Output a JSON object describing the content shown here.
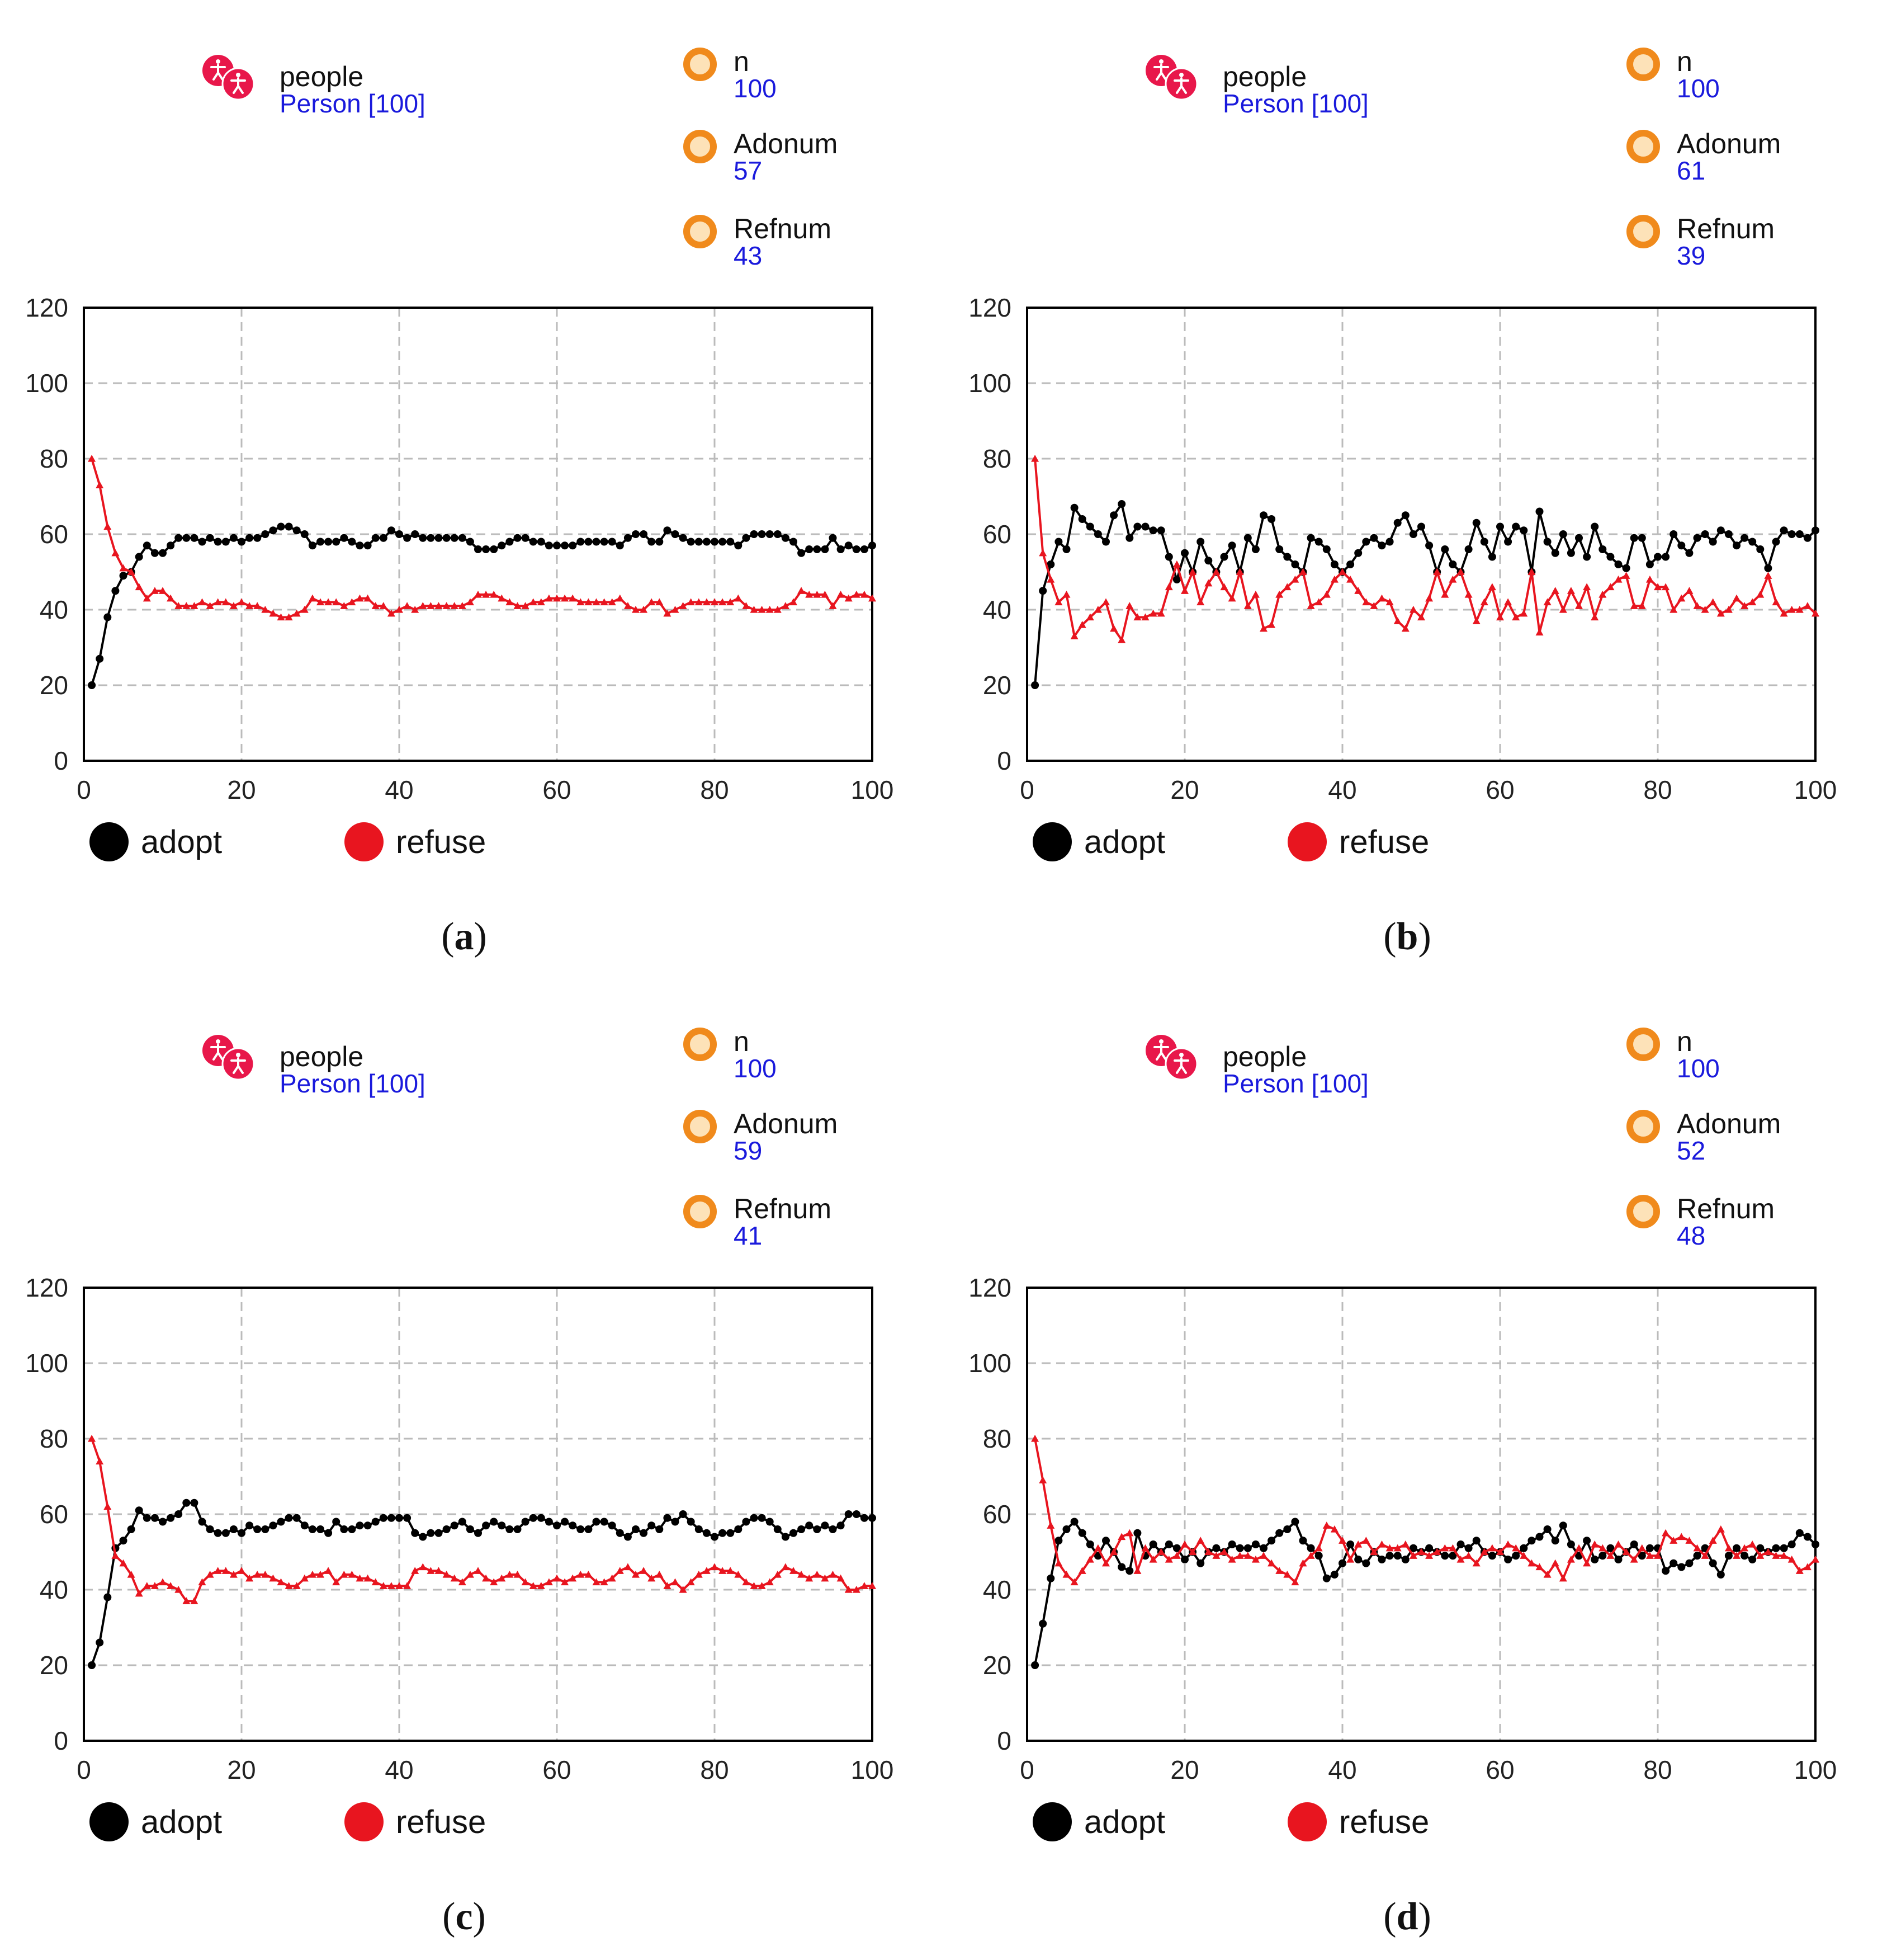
{
  "colors": {
    "adopt": "#000000",
    "refuse": "#e8151f",
    "grid": "#bbbbbb"
  },
  "chart_data": [
    {
      "id": "a",
      "type": "line",
      "caption_letter": "a",
      "population": {
        "name": "people",
        "subtitle": "Person [100]",
        "icon": "people-icon"
      },
      "monitors": [
        {
          "label": "n",
          "value": "100"
        },
        {
          "label": "Adonum",
          "value": "57"
        },
        {
          "label": "Refnum",
          "value": "43"
        }
      ],
      "xlim": [
        0,
        100
      ],
      "ylim": [
        0,
        120
      ],
      "xticks": [
        "0",
        "20",
        "40",
        "60",
        "80",
        "100"
      ],
      "yticks": [
        "0",
        "20",
        "40",
        "60",
        "80",
        "100",
        "120"
      ],
      "legend": [
        "adopt",
        "refuse"
      ],
      "series": [
        {
          "name": "adopt",
          "marker": "circle",
          "values": [
            20,
            27,
            38,
            45,
            49,
            50,
            54,
            57,
            55,
            55,
            57,
            59,
            59,
            59,
            58,
            59,
            58,
            58,
            59,
            58,
            59,
            59,
            60,
            61,
            62,
            62,
            61,
            60,
            57,
            58,
            58,
            58,
            59,
            58,
            57,
            57,
            59,
            59,
            61,
            60,
            59,
            60,
            59,
            59,
            59,
            59,
            59,
            59,
            58,
            56,
            56,
            56,
            57,
            58,
            59,
            59,
            58,
            58,
            57,
            57,
            57,
            57,
            58,
            58,
            58,
            58,
            58,
            57,
            59,
            60,
            60,
            58,
            58,
            61,
            60,
            59,
            58,
            58,
            58,
            58,
            58,
            58,
            57,
            59,
            60,
            60,
            60,
            60,
            59,
            58,
            55,
            56,
            56,
            56,
            59,
            56,
            57,
            56,
            56,
            57
          ]
        },
        {
          "name": "refuse",
          "marker": "triangle",
          "values": [
            80,
            73,
            62,
            55,
            51,
            50,
            46,
            43,
            45,
            45,
            43,
            41,
            41,
            41,
            42,
            41,
            42,
            42,
            41,
            42,
            41,
            41,
            40,
            39,
            38,
            38,
            39,
            40,
            43,
            42,
            42,
            42,
            41,
            42,
            43,
            43,
            41,
            41,
            39,
            40,
            41,
            40,
            41,
            41,
            41,
            41,
            41,
            41,
            42,
            44,
            44,
            44,
            43,
            42,
            41,
            41,
            42,
            42,
            43,
            43,
            43,
            43,
            42,
            42,
            42,
            42,
            42,
            43,
            41,
            40,
            40,
            42,
            42,
            39,
            40,
            41,
            42,
            42,
            42,
            42,
            42,
            42,
            43,
            41,
            40,
            40,
            40,
            40,
            41,
            42,
            45,
            44,
            44,
            44,
            41,
            44,
            43,
            44,
            44,
            43
          ]
        }
      ]
    },
    {
      "id": "b",
      "type": "line",
      "caption_letter": "b",
      "population": {
        "name": "people",
        "subtitle": "Person [100]",
        "icon": "people-icon"
      },
      "monitors": [
        {
          "label": "n",
          "value": "100"
        },
        {
          "label": "Adonum",
          "value": "61"
        },
        {
          "label": "Refnum",
          "value": "39"
        }
      ],
      "xlim": [
        0,
        100
      ],
      "ylim": [
        0,
        120
      ],
      "xticks": [
        "0",
        "20",
        "40",
        "60",
        "80",
        "100"
      ],
      "yticks": [
        "0",
        "20",
        "40",
        "60",
        "80",
        "100",
        "120"
      ],
      "legend": [
        "adopt",
        "refuse"
      ],
      "series": [
        {
          "name": "adopt",
          "marker": "circle",
          "values": [
            20,
            45,
            52,
            58,
            56,
            67,
            64,
            62,
            60,
            58,
            65,
            68,
            59,
            62,
            62,
            61,
            61,
            54,
            48,
            55,
            50,
            58,
            53,
            50,
            54,
            57,
            50,
            59,
            56,
            65,
            64,
            56,
            54,
            52,
            50,
            59,
            58,
            56,
            52,
            50,
            52,
            55,
            58,
            59,
            57,
            58,
            63,
            65,
            60,
            62,
            57,
            50,
            56,
            52,
            50,
            56,
            63,
            58,
            54,
            62,
            58,
            62,
            61,
            50,
            66,
            58,
            55,
            60,
            55,
            59,
            54,
            62,
            56,
            54,
            52,
            51,
            59,
            59,
            52,
            54,
            54,
            60,
            57,
            55,
            59,
            60,
            58,
            61,
            60,
            57,
            59,
            58,
            56,
            51,
            58,
            61,
            60,
            60,
            59,
            61
          ]
        },
        {
          "name": "refuse",
          "marker": "triangle",
          "values": [
            80,
            55,
            48,
            42,
            44,
            33,
            36,
            38,
            40,
            42,
            35,
            32,
            41,
            38,
            38,
            39,
            39,
            46,
            52,
            45,
            50,
            42,
            47,
            50,
            46,
            43,
            50,
            41,
            44,
            35,
            36,
            44,
            46,
            48,
            50,
            41,
            42,
            44,
            48,
            50,
            48,
            45,
            42,
            41,
            43,
            42,
            37,
            35,
            40,
            38,
            43,
            50,
            44,
            48,
            50,
            44,
            37,
            42,
            46,
            38,
            42,
            38,
            39,
            50,
            34,
            42,
            45,
            40,
            45,
            41,
            46,
            38,
            44,
            46,
            48,
            49,
            41,
            41,
            48,
            46,
            46,
            40,
            43,
            45,
            41,
            40,
            42,
            39,
            40,
            43,
            41,
            42,
            44,
            49,
            42,
            39,
            40,
            40,
            41,
            39
          ]
        }
      ]
    },
    {
      "id": "c",
      "type": "line",
      "caption_letter": "c",
      "population": {
        "name": "people",
        "subtitle": "Person [100]",
        "icon": "people-icon"
      },
      "monitors": [
        {
          "label": "n",
          "value": "100"
        },
        {
          "label": "Adonum",
          "value": "59"
        },
        {
          "label": "Refnum",
          "value": "41"
        }
      ],
      "xlim": [
        0,
        100
      ],
      "ylim": [
        0,
        120
      ],
      "xticks": [
        "0",
        "20",
        "40",
        "60",
        "80",
        "100"
      ],
      "yticks": [
        "0",
        "20",
        "40",
        "60",
        "80",
        "100",
        "120"
      ],
      "legend": [
        "adopt",
        "refuse"
      ],
      "series": [
        {
          "name": "adopt",
          "marker": "circle",
          "values": [
            20,
            26,
            38,
            51,
            53,
            56,
            61,
            59,
            59,
            58,
            59,
            60,
            63,
            63,
            58,
            56,
            55,
            55,
            56,
            55,
            57,
            56,
            56,
            57,
            58,
            59,
            59,
            57,
            56,
            56,
            55,
            58,
            56,
            56,
            57,
            57,
            58,
            59,
            59,
            59,
            59,
            55,
            54,
            55,
            55,
            56,
            57,
            58,
            56,
            55,
            57,
            58,
            57,
            56,
            56,
            58,
            59,
            59,
            58,
            57,
            58,
            57,
            56,
            56,
            58,
            58,
            57,
            55,
            54,
            56,
            55,
            57,
            56,
            59,
            58,
            60,
            58,
            56,
            55,
            54,
            55,
            55,
            56,
            58,
            59,
            59,
            58,
            56,
            54,
            55,
            56,
            57,
            56,
            57,
            56,
            57,
            60,
            60,
            59,
            59
          ]
        },
        {
          "name": "refuse",
          "marker": "triangle",
          "values": [
            80,
            74,
            62,
            49,
            47,
            44,
            39,
            41,
            41,
            42,
            41,
            40,
            37,
            37,
            42,
            44,
            45,
            45,
            44,
            45,
            43,
            44,
            44,
            43,
            42,
            41,
            41,
            43,
            44,
            44,
            45,
            42,
            44,
            44,
            43,
            43,
            42,
            41,
            41,
            41,
            41,
            45,
            46,
            45,
            45,
            44,
            43,
            42,
            44,
            45,
            43,
            42,
            43,
            44,
            44,
            42,
            41,
            41,
            42,
            43,
            42,
            43,
            44,
            44,
            42,
            42,
            43,
            45,
            46,
            44,
            45,
            43,
            44,
            41,
            42,
            40,
            42,
            44,
            45,
            46,
            45,
            45,
            44,
            42,
            41,
            41,
            42,
            44,
            46,
            45,
            44,
            43,
            44,
            43,
            44,
            43,
            40,
            40,
            41,
            41
          ]
        }
      ]
    },
    {
      "id": "d",
      "type": "line",
      "caption_letter": "d",
      "population": {
        "name": "people",
        "subtitle": "Person [100]",
        "icon": "people-icon"
      },
      "monitors": [
        {
          "label": "n",
          "value": "100"
        },
        {
          "label": "Adonum",
          "value": "52"
        },
        {
          "label": "Refnum",
          "value": "48"
        }
      ],
      "xlim": [
        0,
        100
      ],
      "ylim": [
        0,
        120
      ],
      "xticks": [
        "0",
        "20",
        "40",
        "60",
        "80",
        "100"
      ],
      "yticks": [
        "0",
        "20",
        "40",
        "60",
        "80",
        "100",
        "120"
      ],
      "legend": [
        "adopt",
        "refuse"
      ],
      "series": [
        {
          "name": "adopt",
          "marker": "circle",
          "values": [
            20,
            31,
            43,
            53,
            56,
            58,
            55,
            52,
            49,
            53,
            50,
            46,
            45,
            55,
            49,
            52,
            50,
            52,
            51,
            48,
            50,
            47,
            50,
            51,
            50,
            52,
            51,
            51,
            52,
            51,
            53,
            55,
            56,
            58,
            53,
            51,
            49,
            43,
            44,
            47,
            52,
            48,
            47,
            50,
            48,
            49,
            49,
            48,
            51,
            50,
            51,
            50,
            49,
            49,
            52,
            51,
            53,
            50,
            49,
            50,
            48,
            49,
            51,
            53,
            54,
            56,
            53,
            57,
            52,
            49,
            53,
            48,
            49,
            51,
            48,
            50,
            52,
            49,
            51,
            51,
            45,
            47,
            46,
            47,
            49,
            51,
            47,
            44,
            49,
            51,
            49,
            48,
            51,
            50,
            51,
            51,
            52,
            55,
            54,
            52
          ]
        },
        {
          "name": "refuse",
          "marker": "triangle",
          "values": [
            80,
            69,
            57,
            47,
            44,
            42,
            45,
            48,
            51,
            47,
            50,
            54,
            55,
            45,
            51,
            48,
            50,
            48,
            49,
            52,
            50,
            53,
            50,
            49,
            50,
            48,
            49,
            49,
            48,
            49,
            47,
            45,
            44,
            42,
            47,
            49,
            51,
            57,
            56,
            53,
            48,
            52,
            53,
            50,
            52,
            51,
            51,
            52,
            49,
            50,
            49,
            50,
            51,
            51,
            48,
            49,
            47,
            50,
            51,
            50,
            52,
            51,
            49,
            47,
            46,
            44,
            47,
            43,
            48,
            51,
            47,
            52,
            51,
            49,
            52,
            50,
            48,
            51,
            49,
            49,
            55,
            53,
            54,
            53,
            51,
            49,
            53,
            56,
            51,
            49,
            51,
            52,
            49,
            50,
            49,
            49,
            48,
            45,
            46,
            48
          ]
        }
      ]
    }
  ]
}
